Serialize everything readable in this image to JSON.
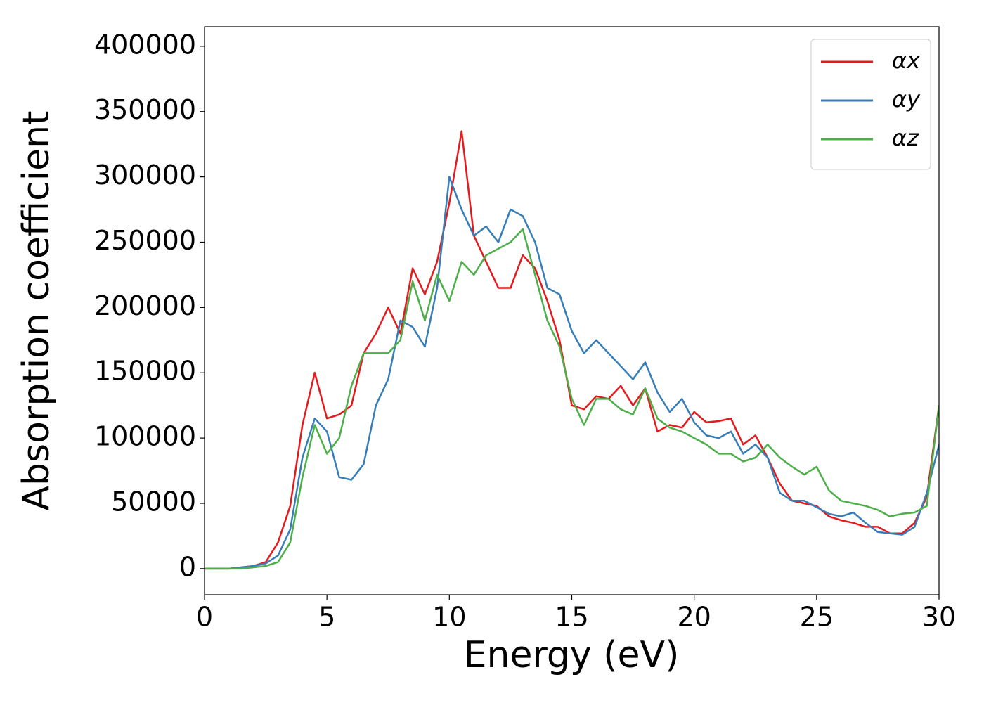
{
  "chart_data": {
    "type": "line",
    "xlabel": "Energy (eV)",
    "ylabel": "Absorption coefficient",
    "x": [
      0,
      0.5,
      1,
      1.5,
      2,
      2.5,
      3,
      3.5,
      4,
      4.5,
      5,
      5.5,
      6,
      6.5,
      7,
      7.5,
      8,
      8.5,
      9,
      9.5,
      10,
      10.5,
      11,
      11.5,
      12,
      12.5,
      13,
      13.5,
      14,
      14.5,
      15,
      15.5,
      16,
      16.5,
      17,
      17.5,
      18,
      18.5,
      19,
      19.5,
      20,
      20.5,
      21,
      21.5,
      22,
      22.5,
      23,
      23.5,
      24,
      24.5,
      25,
      25.5,
      26,
      26.5,
      27,
      27.5,
      28,
      28.5,
      29,
      29.5,
      30
    ],
    "series": [
      {
        "name": "αx",
        "color": "#e41a1c",
        "values": [
          0,
          0,
          0,
          1000,
          2000,
          5000,
          20000,
          48000,
          110000,
          150000,
          115000,
          118000,
          125000,
          165000,
          180000,
          200000,
          180000,
          230000,
          210000,
          235000,
          280000,
          335000,
          255000,
          235000,
          215000,
          215000,
          240000,
          230000,
          205000,
          175000,
          125000,
          122000,
          132000,
          130000,
          140000,
          125000,
          138000,
          105000,
          110000,
          108000,
          120000,
          112000,
          113000,
          115000,
          95000,
          102000,
          85000,
          65000,
          52000,
          50000,
          48000,
          40000,
          37000,
          35000,
          32000,
          32000,
          27000,
          27000,
          35000,
          55000,
          125000
        ]
      },
      {
        "name": "αy",
        "color": "#377eb8",
        "values": [
          0,
          0,
          0,
          1000,
          2000,
          4000,
          10000,
          30000,
          85000,
          115000,
          105000,
          70000,
          68000,
          80000,
          125000,
          145000,
          190000,
          185000,
          170000,
          215000,
          300000,
          275000,
          255000,
          262000,
          250000,
          275000,
          270000,
          250000,
          215000,
          210000,
          182000,
          165000,
          175000,
          165000,
          155000,
          145000,
          158000,
          135000,
          120000,
          130000,
          112000,
          102000,
          100000,
          105000,
          88000,
          95000,
          85000,
          58000,
          52000,
          52000,
          47000,
          42000,
          40000,
          43000,
          35000,
          28000,
          27000,
          26000,
          32000,
          58000,
          95000
        ]
      },
      {
        "name": "αz",
        "color": "#4daf4a",
        "values": [
          0,
          0,
          0,
          0,
          1000,
          2000,
          5000,
          20000,
          70000,
          110000,
          88000,
          100000,
          140000,
          165000,
          165000,
          165000,
          175000,
          220000,
          190000,
          225000,
          205000,
          235000,
          225000,
          240000,
          245000,
          250000,
          260000,
          225000,
          190000,
          170000,
          130000,
          110000,
          130000,
          130000,
          122000,
          118000,
          138000,
          115000,
          108000,
          105000,
          100000,
          95000,
          88000,
          88000,
          82000,
          85000,
          95000,
          85000,
          78000,
          72000,
          78000,
          60000,
          52000,
          50000,
          48000,
          45000,
          40000,
          42000,
          43000,
          48000,
          125000
        ]
      }
    ],
    "xlim": [
      0,
      30
    ],
    "xticks": [
      0,
      5,
      10,
      15,
      20,
      25,
      30
    ],
    "ylim": [
      -20000,
      415000
    ],
    "yticks": [
      0,
      50000,
      100000,
      150000,
      200000,
      250000,
      300000,
      350000,
      400000
    ],
    "grid": false,
    "legend": "upper right"
  }
}
